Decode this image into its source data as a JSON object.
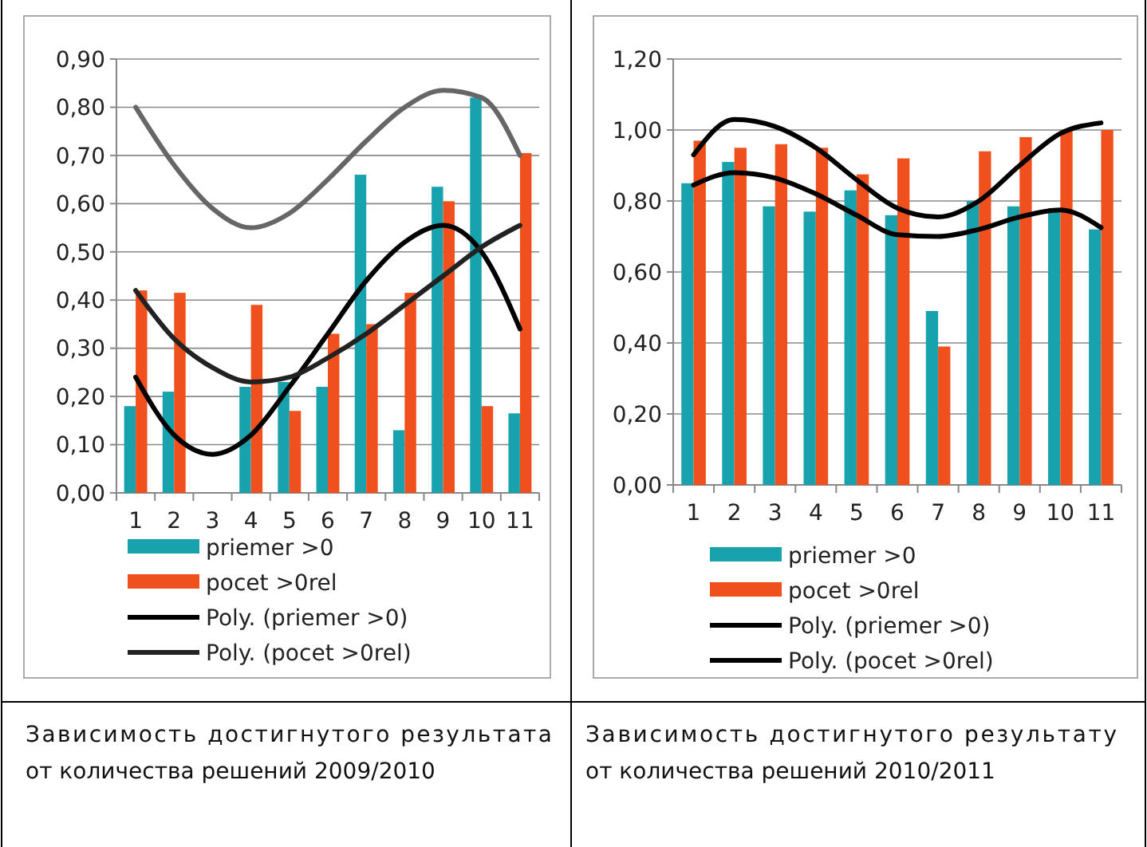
{
  "chart_data": [
    {
      "type": "bar",
      "categories": [
        "1",
        "2",
        "3",
        "4",
        "5",
        "6",
        "7",
        "8",
        "9",
        "10",
        "11"
      ],
      "ylim": [
        0,
        0.9
      ],
      "yticks": [
        {
          "value": 0,
          "label": "0,00"
        },
        {
          "value": 0.1,
          "label": "0,10"
        },
        {
          "value": 0.2,
          "label": "0,20"
        },
        {
          "value": 0.3,
          "label": "0,30"
        },
        {
          "value": 0.4,
          "label": "0,40"
        },
        {
          "value": 0.5,
          "label": "0,50"
        },
        {
          "value": 0.6,
          "label": "0,60"
        },
        {
          "value": 0.7,
          "label": "0,70"
        },
        {
          "value": 0.8,
          "label": "0,80"
        },
        {
          "value": 0.9,
          "label": "0,90"
        }
      ],
      "grid": "y",
      "legend": "bottom",
      "series": [
        {
          "name": "priemer >0",
          "color": "#17a2ad",
          "values": [
            0.18,
            0.21,
            0,
            0.22,
            0.23,
            0.22,
            0.66,
            0.13,
            0.635,
            0.82,
            0.165
          ]
        },
        {
          "name": "pocet >0rel",
          "color": "#f0501e",
          "values": [
            0.42,
            0.415,
            0,
            0.39,
            0.17,
            0.33,
            0.35,
            0.415,
            0.605,
            0.18,
            0.705
          ]
        },
        {
          "name": "Poly. (priemer >0)",
          "type": "line",
          "color": "#000000",
          "line_style": "solid",
          "values": [
            0.24,
            0.12,
            0.08,
            0.12,
            0.22,
            0.33,
            0.44,
            0.52,
            0.555,
            0.5,
            0.34
          ]
        },
        {
          "name": "Poly. (pocet >0rel)",
          "type": "line",
          "color": "#222222",
          "line_style": "solid",
          "values": [
            0.42,
            0.32,
            0.26,
            0.23,
            0.24,
            0.28,
            0.33,
            0.39,
            0.45,
            0.51,
            0.555
          ]
        },
        {
          "type": "line",
          "color": "#666666",
          "line_style": "solid",
          "values": [
            0.8,
            0.68,
            0.59,
            0.55,
            0.58,
            0.65,
            0.73,
            0.8,
            0.835,
            0.82,
            0.7
          ]
        }
      ],
      "annotations": [
        "Зависимость достигнутого результата от количества решений 2009/2010"
      ]
    },
    {
      "type": "bar",
      "categories": [
        "1",
        "2",
        "3",
        "4",
        "5",
        "6",
        "7",
        "8",
        "9",
        "10",
        "11"
      ],
      "ylim": [
        0,
        1.2
      ],
      "yticks": [
        {
          "value": 0,
          "label": "0,00"
        },
        {
          "value": 0.2,
          "label": "0,20"
        },
        {
          "value": 0.4,
          "label": "0,40"
        },
        {
          "value": 0.6,
          "label": "0,60"
        },
        {
          "value": 0.8,
          "label": "0,80"
        },
        {
          "value": 1,
          "label": "1,00"
        },
        {
          "value": 1.2,
          "label": "1,20"
        }
      ],
      "grid": "y",
      "legend": "bottom",
      "series": [
        {
          "name": "priemer >0",
          "color": "#17a2ad",
          "values": [
            0.85,
            0.91,
            0.785,
            0.77,
            0.83,
            0.76,
            0.49,
            0.8,
            0.785,
            0.78,
            0.72
          ]
        },
        {
          "name": "pocet >0rel",
          "color": "#f0501e",
          "values": [
            0.97,
            0.95,
            0.96,
            0.95,
            0.875,
            0.92,
            0.39,
            0.94,
            0.98,
            1,
            1
          ]
        },
        {
          "name": "Poly. (priemer >0)",
          "type": "line",
          "color": "#000000",
          "line_style": "solid",
          "values": [
            0.845,
            0.88,
            0.865,
            0.82,
            0.76,
            0.705,
            0.7,
            0.72,
            0.755,
            0.775,
            0.725
          ]
        },
        {
          "name": "Poly. (pocet >0rel)",
          "type": "line",
          "color": "#000000",
          "line_style": "solid",
          "values": [
            0.93,
            1.03,
            1.01,
            0.95,
            0.86,
            0.78,
            0.755,
            0.8,
            0.9,
            0.99,
            1.02
          ]
        }
      ],
      "annotations": [
        "Зависимость достигнутого результату от количества решений 2010/2011"
      ]
    }
  ]
}
